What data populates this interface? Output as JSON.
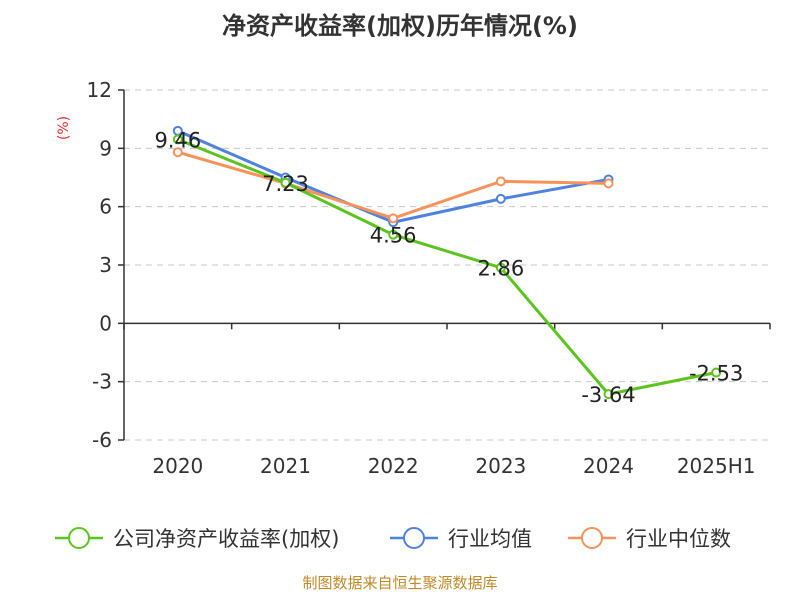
{
  "chart_data": {
    "type": "line",
    "title": "净资产收益率(加权)历年情况(%)",
    "unit_label": "(%)",
    "categories": [
      "2020",
      "2021",
      "2022",
      "2023",
      "2024",
      "2025H1"
    ],
    "ylim": [
      -6,
      12
    ],
    "yticks": [
      "12",
      "9",
      "6",
      "3",
      "0",
      "-3",
      "-6"
    ],
    "ytick_values": [
      12,
      9,
      6,
      3,
      0,
      -3,
      -6
    ],
    "grid": true,
    "legend_position": "bottom",
    "series": [
      {
        "name": "公司净资产收益率(加权)",
        "color": "#5cc41f",
        "values": [
          9.46,
          7.23,
          4.56,
          2.86,
          -3.64,
          -2.53
        ],
        "labels": [
          "9.46",
          "7.23",
          "4.56",
          "2.86",
          "-3.64",
          "-2.53"
        ]
      },
      {
        "name": "行业均值",
        "color": "#4f82e0",
        "values": [
          9.9,
          7.5,
          5.2,
          6.4,
          7.4,
          null
        ]
      },
      {
        "name": "行业中位数",
        "color": "#f7925a",
        "values": [
          8.8,
          7.2,
          5.4,
          7.3,
          7.2,
          null
        ]
      }
    ]
  },
  "source_text": "制图数据来自恒生聚源数据库"
}
